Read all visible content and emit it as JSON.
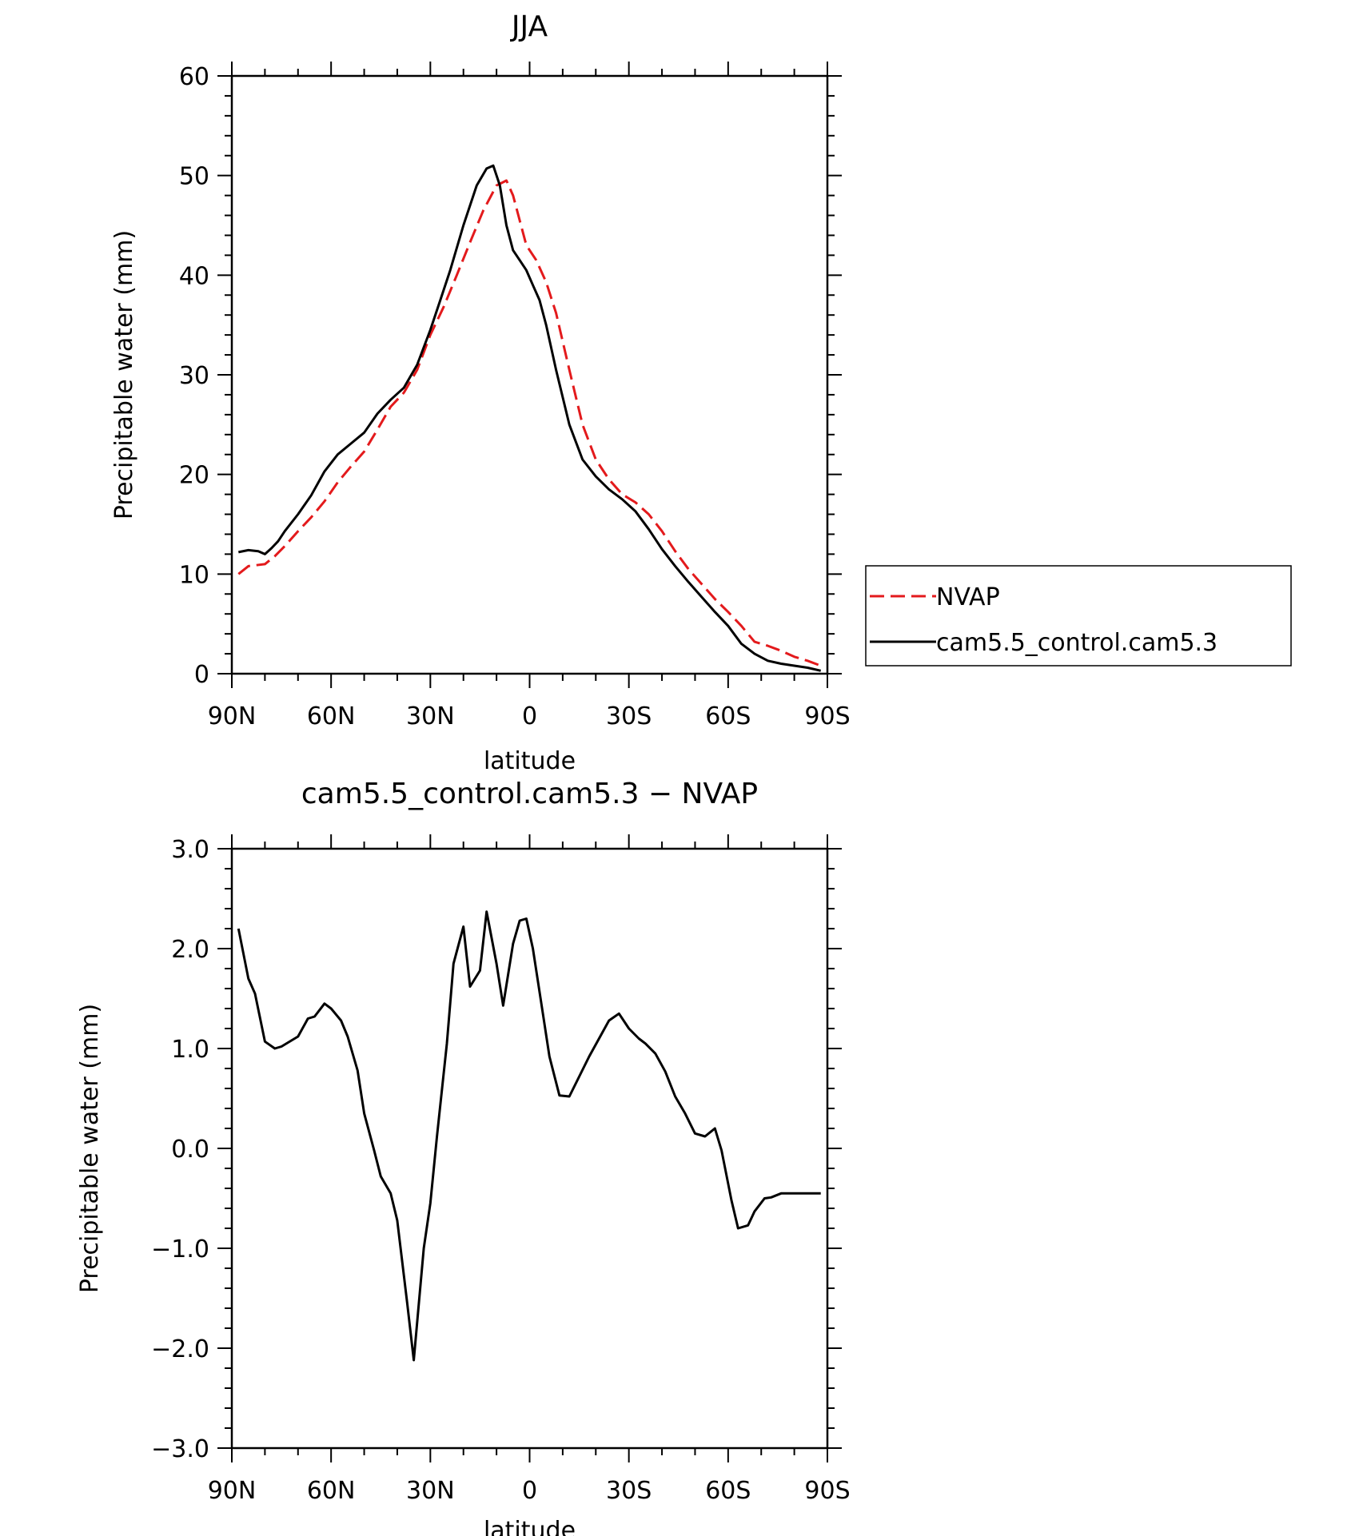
{
  "chart_data": [
    {
      "type": "line",
      "title": "JJA",
      "xlabel": "latitude",
      "ylabel": "Precipitable water (mm)",
      "xlim": [
        90,
        -90
      ],
      "ylim": [
        0,
        60
      ],
      "x_ticks": [
        {
          "value": 90,
          "label": "90N"
        },
        {
          "value": 60,
          "label": "60N"
        },
        {
          "value": 30,
          "label": "30N"
        },
        {
          "value": 0,
          "label": "0"
        },
        {
          "value": -30,
          "label": "30S"
        },
        {
          "value": -60,
          "label": "60S"
        },
        {
          "value": -90,
          "label": "90S"
        }
      ],
      "y_ticks": [
        {
          "value": 0,
          "label": "0"
        },
        {
          "value": 10,
          "label": "10"
        },
        {
          "value": 20,
          "label": "20"
        },
        {
          "value": 30,
          "label": "30"
        },
        {
          "value": 40,
          "label": "40"
        },
        {
          "value": 50,
          "label": "50"
        },
        {
          "value": 60,
          "label": "60"
        }
      ],
      "legend_position": "right",
      "series": [
        {
          "name": "NVAP",
          "color": "#e31a1c",
          "dash": "dashed",
          "x": [
            88,
            85,
            80,
            77,
            74,
            70,
            66,
            62,
            58,
            54,
            50,
            46,
            42,
            38,
            34,
            30,
            26,
            22,
            18,
            14,
            10,
            7,
            5,
            3,
            1,
            -2,
            -5,
            -8,
            -12,
            -16,
            -20,
            -24,
            -28,
            -32,
            -36,
            -40,
            -44,
            -48,
            -52,
            -56,
            -60,
            -64,
            -68,
            -72,
            -76,
            -80,
            -84,
            -88
          ],
          "y": [
            10.0,
            10.8,
            11.0,
            11.8,
            12.8,
            14.3,
            15.7,
            17.3,
            19.2,
            20.8,
            22.3,
            24.5,
            26.8,
            28.2,
            30.5,
            34.0,
            36.8,
            40.0,
            43.3,
            46.5,
            49.0,
            49.5,
            48.0,
            45.5,
            43.0,
            41.5,
            39.3,
            36.2,
            30.5,
            25.0,
            21.5,
            19.5,
            18.0,
            17.2,
            16.0,
            14.3,
            12.3,
            10.5,
            9.0,
            7.5,
            6.2,
            4.8,
            3.2,
            2.8,
            2.3,
            1.7,
            1.3,
            0.8
          ]
        },
        {
          "name": "cam5.5_control.cam5.3",
          "color": "#000000",
          "dash": "solid",
          "x": [
            88,
            85,
            82,
            80,
            78,
            76,
            74,
            70,
            66,
            62,
            58,
            54,
            50,
            46,
            42,
            38,
            34,
            30,
            27,
            24,
            20,
            16,
            13,
            11,
            9,
            7,
            5,
            3,
            1,
            -1,
            -3,
            -5,
            -8,
            -12,
            -16,
            -20,
            -24,
            -28,
            -32,
            -36,
            -40,
            -44,
            -48,
            -52,
            -56,
            -60,
            -64,
            -68,
            -72,
            -76,
            -80,
            -84,
            -88
          ],
          "y": [
            12.2,
            12.4,
            12.3,
            12.0,
            12.6,
            13.3,
            14.3,
            16.0,
            17.9,
            20.3,
            22.0,
            23.1,
            24.2,
            26.1,
            27.5,
            28.7,
            31.0,
            34.5,
            37.5,
            40.5,
            45.0,
            49.0,
            50.7,
            51.0,
            49.0,
            45.0,
            42.5,
            41.5,
            40.5,
            39.0,
            37.5,
            35.0,
            30.5,
            25.0,
            21.5,
            19.8,
            18.5,
            17.5,
            16.3,
            14.5,
            12.5,
            10.8,
            9.2,
            7.7,
            6.2,
            4.8,
            3.0,
            2.0,
            1.3,
            1.0,
            0.8,
            0.6,
            0.3
          ]
        }
      ]
    },
    {
      "type": "line",
      "title": "cam5.5_control.cam5.3 - NVAP",
      "xlabel": "latitude",
      "ylabel": "Precipitable water (mm)",
      "xlim": [
        90,
        -90
      ],
      "ylim": [
        -3.0,
        3.0
      ],
      "x_ticks": [
        {
          "value": 90,
          "label": "90N"
        },
        {
          "value": 60,
          "label": "60N"
        },
        {
          "value": 30,
          "label": "30N"
        },
        {
          "value": 0,
          "label": "0"
        },
        {
          "value": -30,
          "label": "30S"
        },
        {
          "value": -60,
          "label": "60S"
        },
        {
          "value": -90,
          "label": "90S"
        }
      ],
      "y_ticks": [
        {
          "value": -3.0,
          "label": "-3.0"
        },
        {
          "value": -2.0,
          "label": "-2.0"
        },
        {
          "value": -1.0,
          "label": "-1.0"
        },
        {
          "value": 0.0,
          "label": "0.0"
        },
        {
          "value": 1.0,
          "label": "1.0"
        },
        {
          "value": 2.0,
          "label": "2.0"
        },
        {
          "value": 3.0,
          "label": "3.0"
        }
      ],
      "series": [
        {
          "color": "#000000",
          "dash": "solid",
          "x": [
            88,
            85,
            83,
            80,
            77,
            75,
            72,
            70,
            67,
            65,
            62,
            60,
            57,
            55,
            52,
            50,
            47,
            45,
            42,
            40,
            37,
            35,
            32,
            30,
            28,
            25,
            23,
            20,
            18,
            15,
            13,
            10,
            8,
            5,
            3,
            1,
            -1,
            -4,
            -6,
            -9,
            -12,
            -15,
            -18,
            -21,
            -24,
            -27,
            -30,
            -33,
            -35,
            -38,
            -41,
            -44,
            -47,
            -50,
            -53,
            -56,
            -58,
            -61,
            -63,
            -66,
            -68,
            -71,
            -73,
            -76,
            -79,
            -82,
            -85,
            -88
          ],
          "y": [
            2.2,
            1.7,
            1.55,
            1.07,
            1.0,
            1.02,
            1.08,
            1.12,
            1.3,
            1.32,
            1.45,
            1.4,
            1.28,
            1.12,
            0.78,
            0.35,
            -0.02,
            -0.28,
            -0.45,
            -0.72,
            -1.55,
            -2.12,
            -1.0,
            -0.55,
            0.12,
            1.05,
            1.85,
            2.22,
            1.62,
            1.78,
            2.37,
            1.85,
            1.43,
            2.05,
            2.28,
            2.3,
            2.0,
            1.35,
            0.92,
            0.53,
            0.52,
            0.72,
            0.92,
            1.1,
            1.28,
            1.35,
            1.2,
            1.1,
            1.05,
            0.95,
            0.77,
            0.52,
            0.35,
            0.15,
            0.12,
            0.2,
            -0.02,
            -0.52,
            -0.8,
            -0.77,
            -0.63,
            -0.5,
            -0.49,
            -0.45,
            -0.45,
            -0.45,
            -0.45,
            -0.45
          ]
        }
      ]
    }
  ]
}
